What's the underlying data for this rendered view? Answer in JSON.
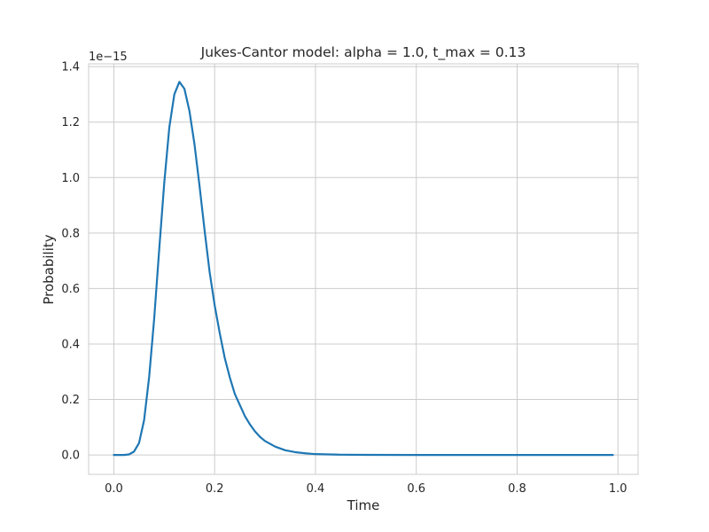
{
  "chart_data": {
    "type": "line",
    "title": "Jukes-Cantor model: alpha = 1.0, t_max = 0.13",
    "xlabel": "Time",
    "ylabel": "Probability",
    "y_offset_label": "1e−15",
    "xlim": [
      -0.05,
      1.04
    ],
    "ylim": [
      -0.07,
      1.41
    ],
    "xticks": [
      0.0,
      0.2,
      0.4,
      0.6,
      0.8,
      1.0
    ],
    "xtick_labels": [
      "0.0",
      "0.2",
      "0.4",
      "0.6",
      "0.8",
      "1.0"
    ],
    "yticks": [
      0.0,
      0.2,
      0.4,
      0.6,
      0.8,
      1.0,
      1.2,
      1.4
    ],
    "ytick_labels": [
      "0.0",
      "0.2",
      "0.4",
      "0.6",
      "0.8",
      "1.0",
      "1.2",
      "1.4"
    ],
    "grid": true,
    "line_color": "#1f77b4",
    "series": [
      {
        "x": [
          0.0,
          0.01,
          0.02,
          0.03,
          0.04,
          0.05,
          0.06,
          0.07,
          0.08,
          0.09,
          0.1,
          0.11,
          0.12,
          0.13,
          0.14,
          0.15,
          0.16,
          0.17,
          0.18,
          0.19,
          0.2,
          0.21,
          0.22,
          0.23,
          0.24,
          0.25,
          0.26,
          0.27,
          0.28,
          0.29,
          0.3,
          0.32,
          0.34,
          0.36,
          0.38,
          0.4,
          0.45,
          0.5,
          0.6,
          0.7,
          0.8,
          0.9,
          0.99
        ],
        "values": [
          0.0,
          0.0,
          0.0,
          0.002,
          0.012,
          0.043,
          0.125,
          0.28,
          0.49,
          0.74,
          0.98,
          1.18,
          1.3,
          1.345,
          1.32,
          1.24,
          1.12,
          0.97,
          0.81,
          0.66,
          0.54,
          0.44,
          0.35,
          0.28,
          0.22,
          0.18,
          0.14,
          0.11,
          0.085,
          0.065,
          0.05,
          0.03,
          0.017,
          0.01,
          0.006,
          0.003,
          0.001,
          0.0003,
          0.0,
          0.0,
          0.0,
          0.0,
          0.0
        ]
      }
    ]
  }
}
